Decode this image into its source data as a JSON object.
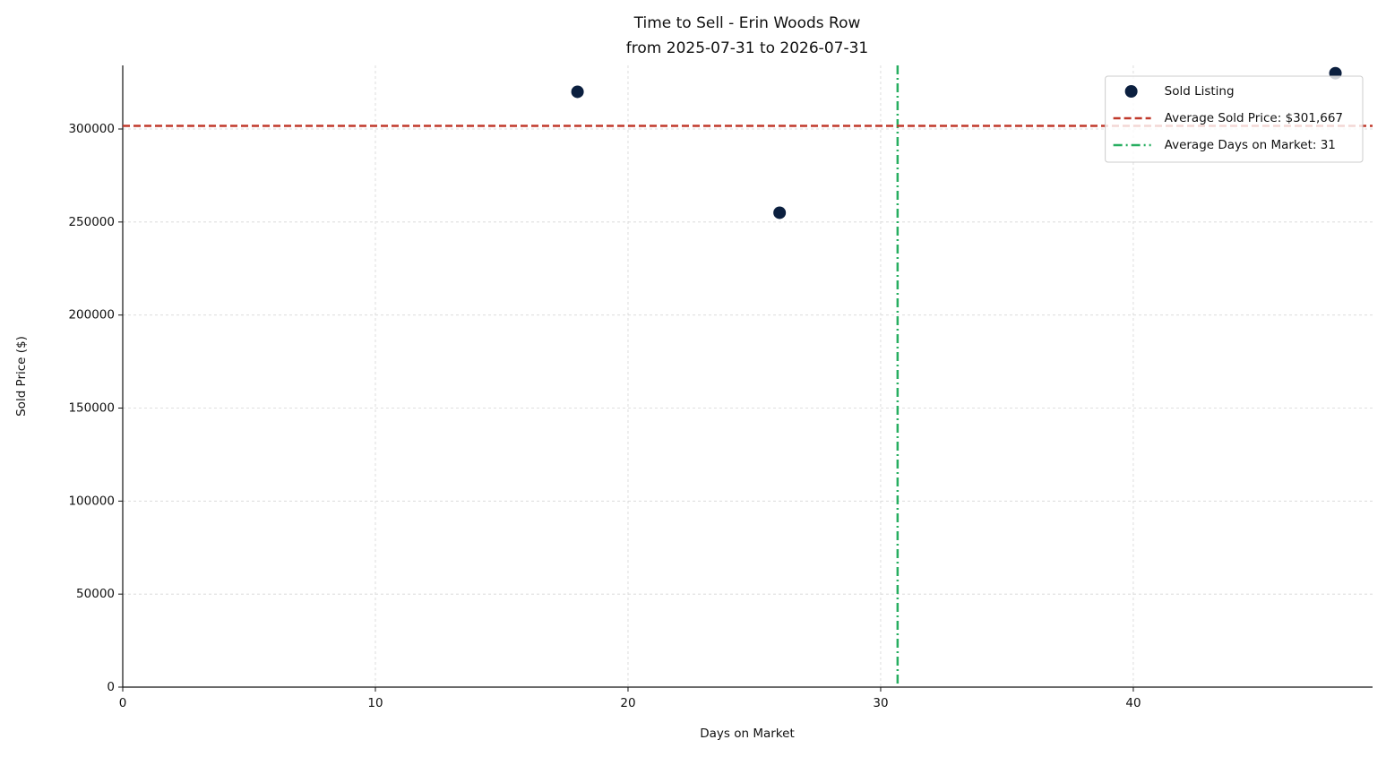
{
  "chart_data": {
    "type": "scatter",
    "title": "Time to Sell - Erin Woods Row",
    "subtitle": "from 2025-07-31 to 2026-07-31",
    "x_label": "Days on Market",
    "y_label": "Sold Price ($)",
    "x": [
      18,
      26,
      48
    ],
    "series": [
      {
        "name": "Sold Listing",
        "color": "#0b1f3f",
        "values": [
          320000,
          255000,
          330000
        ]
      }
    ],
    "hlines": [
      {
        "name": "Average Sold Price: $301,667",
        "value": 301667,
        "color": "#c0392b"
      }
    ],
    "vlines": [
      {
        "name": "Average Days on Market: 31",
        "value": 30.67,
        "color": "#27ae60"
      }
    ],
    "xlim": [
      0,
      49.47
    ],
    "ylim": [
      0,
      334190
    ],
    "xticks": [
      0,
      10,
      20,
      30,
      40
    ],
    "yticks": [
      0,
      50000,
      100000,
      150000,
      200000,
      250000,
      300000
    ],
    "grid": true,
    "legend": "upper right"
  }
}
